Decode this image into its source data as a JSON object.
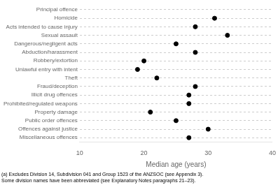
{
  "chart_data": {
    "type": "scatter",
    "categories": [
      "Principal offence",
      "Homicide",
      "Acts intended to cause injury",
      "Sexual assault",
      "Dangerous/negligent acts",
      "Abduction/harassment",
      "Robbery/extortion",
      "Unlawful entry with intent",
      "Theft",
      "Fraud/deception",
      "Illicit drug offences",
      "Prohibited/regulated weapons",
      "Property damage",
      "Public order offences",
      "Offences against justice",
      "Miscellaneous offences"
    ],
    "values": [
      null,
      31,
      28,
      33,
      25,
      28,
      20,
      19,
      22,
      28,
      27,
      27,
      21,
      25,
      30,
      27
    ],
    "xlabel": "Median age (years)",
    "xlim": [
      10,
      40
    ],
    "xticks": [
      10,
      20,
      30,
      40
    ],
    "color": "#000000",
    "marker": "circle",
    "grid": true,
    "annotations": [
      "(a) Excludes Division 14, Subdivision 041 and Group 1523 of the ANZSOC (see Appendix 3).",
      "Some division names have been abbreviated (see Explanatory Notes paragraphs 21–23)."
    ]
  }
}
